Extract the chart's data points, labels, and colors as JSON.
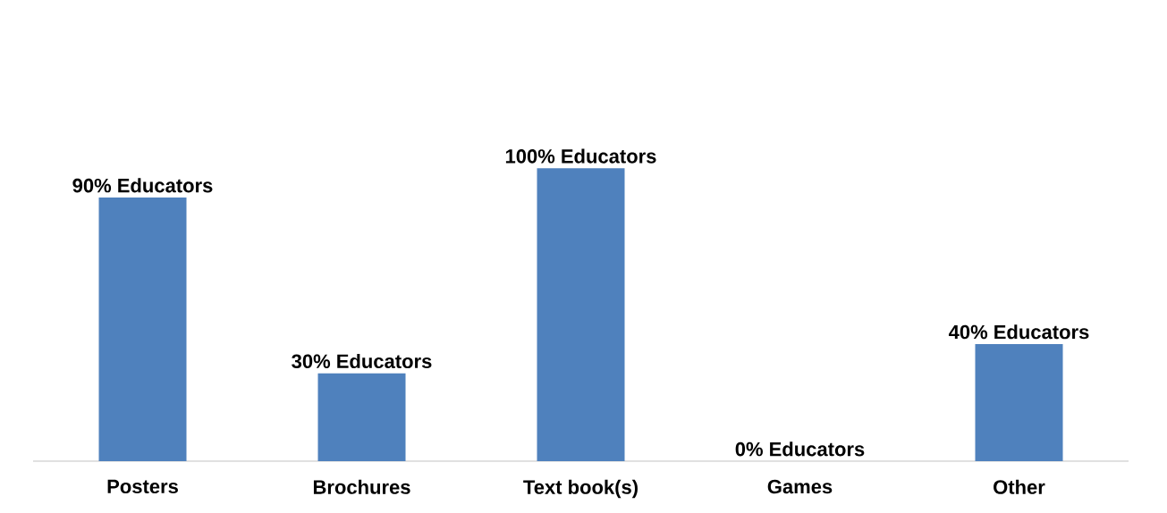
{
  "chart_data": {
    "type": "bar",
    "categories": [
      "Posters",
      "Brochures",
      "Text book(s)",
      "Games",
      "Other"
    ],
    "values": [
      90,
      30,
      100,
      0,
      40
    ],
    "value_labels": [
      "90% Educators",
      "30% Educators",
      "100% Educators",
      "0% Educators",
      "40% Educators"
    ],
    "color": "#4f81bd"
  }
}
